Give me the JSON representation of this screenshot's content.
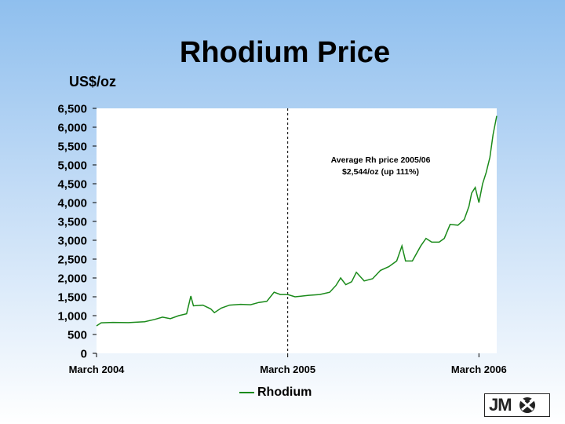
{
  "slide": {
    "title": "Rhodium Price",
    "y_unit": "US$/oz",
    "logo_text": "JM"
  },
  "chart_data": {
    "type": "line",
    "title": "Rhodium Price",
    "ylabel": "US$/oz",
    "xlabel": "",
    "ylim": [
      0,
      6500
    ],
    "yticks": [
      0,
      500,
      1000,
      1500,
      2000,
      2500,
      3000,
      3500,
      4000,
      4500,
      5000,
      5500,
      6000,
      6500
    ],
    "x_tick_labels": [
      "March 2004",
      "March 2005",
      "March 2006"
    ],
    "xlim": [
      "2004-03-01",
      "2006-04-04"
    ],
    "grid": false,
    "legend_position": "bottom",
    "annotation": {
      "lines": [
        "Average Rh price 2005/06",
        "$2,544/oz (up 111%)"
      ],
      "marker_x": "2005-03-01",
      "marker_style": "dashed vertical line"
    },
    "series": [
      {
        "name": "Rhodium",
        "color": "#1a8a1a",
        "points": [
          [
            "2004-03-01",
            730
          ],
          [
            "2004-03-10",
            810
          ],
          [
            "2004-04-01",
            820
          ],
          [
            "2004-05-01",
            815
          ],
          [
            "2004-06-01",
            840
          ],
          [
            "2004-06-20",
            900
          ],
          [
            "2004-07-05",
            960
          ],
          [
            "2004-07-20",
            920
          ],
          [
            "2004-08-05",
            1000
          ],
          [
            "2004-08-20",
            1050
          ],
          [
            "2004-08-28",
            1520
          ],
          [
            "2004-09-02",
            1260
          ],
          [
            "2004-09-20",
            1280
          ],
          [
            "2004-10-05",
            1180
          ],
          [
            "2004-10-12",
            1080
          ],
          [
            "2004-10-25",
            1200
          ],
          [
            "2004-11-10",
            1280
          ],
          [
            "2004-12-01",
            1300
          ],
          [
            "2004-12-20",
            1290
          ],
          [
            "2005-01-05",
            1350
          ],
          [
            "2005-01-20",
            1380
          ],
          [
            "2005-02-03",
            1620
          ],
          [
            "2005-02-15",
            1560
          ],
          [
            "2005-03-01",
            1560
          ],
          [
            "2005-03-15",
            1500
          ],
          [
            "2005-04-10",
            1540
          ],
          [
            "2005-05-01",
            1560
          ],
          [
            "2005-05-20",
            1620
          ],
          [
            "2005-06-01",
            1800
          ],
          [
            "2005-06-10",
            2000
          ],
          [
            "2005-06-20",
            1820
          ],
          [
            "2005-07-01",
            1900
          ],
          [
            "2005-07-10",
            2150
          ],
          [
            "2005-07-25",
            1920
          ],
          [
            "2005-08-10",
            1980
          ],
          [
            "2005-08-25",
            2200
          ],
          [
            "2005-09-10",
            2300
          ],
          [
            "2005-09-25",
            2450
          ],
          [
            "2005-10-05",
            2850
          ],
          [
            "2005-10-12",
            2450
          ],
          [
            "2005-10-25",
            2450
          ],
          [
            "2005-11-10",
            2850
          ],
          [
            "2005-11-20",
            3050
          ],
          [
            "2005-12-01",
            2950
          ],
          [
            "2005-12-15",
            2950
          ],
          [
            "2005-12-25",
            3050
          ],
          [
            "2006-01-05",
            3420
          ],
          [
            "2006-01-20",
            3400
          ],
          [
            "2006-02-01",
            3550
          ],
          [
            "2006-02-10",
            3900
          ],
          [
            "2006-02-15",
            4250
          ],
          [
            "2006-02-22",
            4400
          ],
          [
            "2006-03-01",
            4000
          ],
          [
            "2006-03-08",
            4500
          ],
          [
            "2006-03-15",
            4800
          ],
          [
            "2006-03-22",
            5200
          ],
          [
            "2006-03-28",
            5800
          ],
          [
            "2006-04-04",
            6300
          ]
        ]
      }
    ]
  }
}
